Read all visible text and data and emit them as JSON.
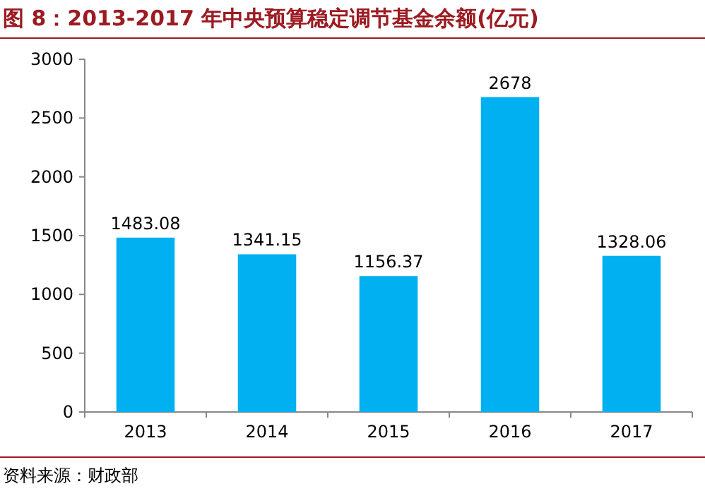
{
  "chart_data": {
    "type": "bar",
    "title": "图 8：2013-2017 年中央预算稳定调节基金余额(亿元)",
    "categories": [
      "2013",
      "2014",
      "2015",
      "2016",
      "2017"
    ],
    "values": [
      1483.08,
      1341.15,
      1156.37,
      2678,
      1328.06
    ],
    "color": "#00b0f0",
    "ylim": [
      0,
      3000
    ],
    "yticks": [
      0,
      500,
      1000,
      1500,
      2000,
      2500,
      3000
    ],
    "data_labels": true,
    "annotations": [
      "资料来源：财政部"
    ]
  }
}
